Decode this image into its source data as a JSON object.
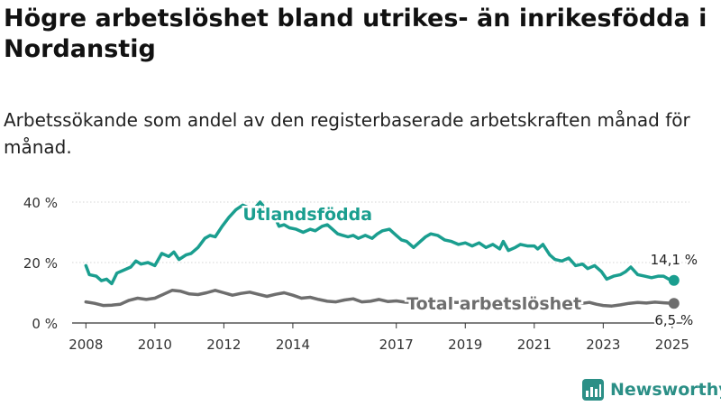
{
  "title": "Högre arbetslöshet bland utrikes- än inrikesfödda i Nordanstig",
  "subtitle": "Arbetssökande som andel av den registerbaserade arbetskraften månad för månad.",
  "brand": {
    "name": "Newsworthy",
    "icon": "bar-chart-logo-icon",
    "color": "#2b8f86"
  },
  "chart_data": {
    "type": "line",
    "ylim": [
      0,
      40
    ],
    "xlim": [
      2007.6,
      2025.5
    ],
    "y_ticks": [
      {
        "value": 0,
        "label": "0 %"
      },
      {
        "value": 20,
        "label": "20 %"
      },
      {
        "value": 40,
        "label": "40 %"
      }
    ],
    "x_ticks": [
      {
        "value": 2008,
        "label": "2008"
      },
      {
        "value": 2010,
        "label": "2010"
      },
      {
        "value": 2012,
        "label": "2012"
      },
      {
        "value": 2014,
        "label": "2014"
      },
      {
        "value": 2017,
        "label": "2017"
      },
      {
        "value": 2019,
        "label": "2019"
      },
      {
        "value": 2021,
        "label": "2021"
      },
      {
        "value": 2023,
        "label": "2023"
      },
      {
        "value": 2025,
        "label": "2025"
      }
    ],
    "grid": true,
    "series": [
      {
        "name": "Utlandsfödda",
        "color": "#1a9e8f",
        "end_label": "14,1 %",
        "points": [
          [
            2008.0,
            19
          ],
          [
            2008.1,
            16
          ],
          [
            2008.3,
            15.5
          ],
          [
            2008.45,
            14
          ],
          [
            2008.6,
            14.5
          ],
          [
            2008.75,
            13
          ],
          [
            2008.9,
            16.5
          ],
          [
            2009.1,
            17.5
          ],
          [
            2009.3,
            18.5
          ],
          [
            2009.45,
            20.5
          ],
          [
            2009.6,
            19.5
          ],
          [
            2009.8,
            20
          ],
          [
            2010.0,
            19
          ],
          [
            2010.2,
            23
          ],
          [
            2010.4,
            22
          ],
          [
            2010.55,
            23.5
          ],
          [
            2010.7,
            21
          ],
          [
            2010.9,
            22.5
          ],
          [
            2011.05,
            23
          ],
          [
            2011.25,
            25
          ],
          [
            2011.45,
            28
          ],
          [
            2011.6,
            29
          ],
          [
            2011.75,
            28.5
          ],
          [
            2011.95,
            32
          ],
          [
            2012.15,
            35
          ],
          [
            2012.35,
            37.5
          ],
          [
            2012.55,
            39
          ],
          [
            2012.75,
            38
          ],
          [
            2012.9,
            38
          ],
          [
            2013.05,
            40
          ],
          [
            2013.2,
            38
          ],
          [
            2013.4,
            37
          ],
          [
            2013.6,
            32
          ],
          [
            2013.75,
            32.5
          ],
          [
            2013.9,
            31.5
          ],
          [
            2014.1,
            31
          ],
          [
            2014.3,
            30
          ],
          [
            2014.5,
            31
          ],
          [
            2014.65,
            30.5
          ],
          [
            2014.85,
            32
          ],
          [
            2015.0,
            32.5
          ],
          [
            2015.15,
            31
          ],
          [
            2015.3,
            29.5
          ],
          [
            2015.45,
            29
          ],
          [
            2015.6,
            28.5
          ],
          [
            2015.75,
            29
          ],
          [
            2015.9,
            28
          ],
          [
            2016.1,
            29
          ],
          [
            2016.3,
            28
          ],
          [
            2016.45,
            29.5
          ],
          [
            2016.6,
            30.5
          ],
          [
            2016.8,
            31
          ],
          [
            2017.0,
            29
          ],
          [
            2017.15,
            27.5
          ],
          [
            2017.3,
            27
          ],
          [
            2017.5,
            25
          ],
          [
            2017.65,
            26.5
          ],
          [
            2017.85,
            28.5
          ],
          [
            2018.0,
            29.5
          ],
          [
            2018.2,
            29
          ],
          [
            2018.4,
            27.5
          ],
          [
            2018.6,
            27
          ],
          [
            2018.8,
            26
          ],
          [
            2019.0,
            26.5
          ],
          [
            2019.2,
            25.5
          ],
          [
            2019.4,
            26.5
          ],
          [
            2019.6,
            25
          ],
          [
            2019.8,
            26
          ],
          [
            2020.0,
            24.5
          ],
          [
            2020.1,
            27
          ],
          [
            2020.25,
            24
          ],
          [
            2020.45,
            25
          ],
          [
            2020.6,
            26
          ],
          [
            2020.8,
            25.5
          ],
          [
            2021.0,
            25.5
          ],
          [
            2021.1,
            24.5
          ],
          [
            2021.25,
            26
          ],
          [
            2021.45,
            22.5
          ],
          [
            2021.6,
            21
          ],
          [
            2021.8,
            20.5
          ],
          [
            2022.0,
            21.5
          ],
          [
            2022.2,
            19
          ],
          [
            2022.4,
            19.5
          ],
          [
            2022.55,
            18
          ],
          [
            2022.75,
            19
          ],
          [
            2022.95,
            17
          ],
          [
            2023.1,
            14.5
          ],
          [
            2023.3,
            15.5
          ],
          [
            2023.5,
            16
          ],
          [
            2023.65,
            17
          ],
          [
            2023.8,
            18.5
          ],
          [
            2024.0,
            16
          ],
          [
            2024.2,
            15.5
          ],
          [
            2024.4,
            15
          ],
          [
            2024.6,
            15.5
          ],
          [
            2024.75,
            15.5
          ],
          [
            2024.9,
            14.5
          ],
          [
            2025.05,
            14.1
          ]
        ]
      },
      {
        "name": "Total arbetslöshet",
        "color": "#6e6e6e",
        "end_label": "6,5 %",
        "points": [
          [
            2008.0,
            7
          ],
          [
            2008.25,
            6.5
          ],
          [
            2008.5,
            5.8
          ],
          [
            2008.75,
            5.9
          ],
          [
            2009.0,
            6.2
          ],
          [
            2009.25,
            7.5
          ],
          [
            2009.5,
            8.2
          ],
          [
            2009.75,
            7.8
          ],
          [
            2010.0,
            8.2
          ],
          [
            2010.25,
            9.5
          ],
          [
            2010.5,
            10.8
          ],
          [
            2010.75,
            10.5
          ],
          [
            2011.0,
            9.6
          ],
          [
            2011.25,
            9.4
          ],
          [
            2011.5,
            10
          ],
          [
            2011.75,
            10.8
          ],
          [
            2012.0,
            10
          ],
          [
            2012.25,
            9.2
          ],
          [
            2012.5,
            9.8
          ],
          [
            2012.75,
            10.2
          ],
          [
            2013.0,
            9.5
          ],
          [
            2013.25,
            8.8
          ],
          [
            2013.5,
            9.5
          ],
          [
            2013.75,
            10
          ],
          [
            2014.0,
            9.2
          ],
          [
            2014.25,
            8.2
          ],
          [
            2014.5,
            8.5
          ],
          [
            2014.75,
            7.8
          ],
          [
            2015.0,
            7.2
          ],
          [
            2015.25,
            7
          ],
          [
            2015.5,
            7.6
          ],
          [
            2015.75,
            8
          ],
          [
            2016.0,
            7
          ],
          [
            2016.25,
            7.2
          ],
          [
            2016.5,
            7.8
          ],
          [
            2016.75,
            7.1
          ],
          [
            2017.0,
            7.3
          ],
          [
            2017.25,
            6.9
          ],
          [
            2017.5,
            6.8
          ],
          [
            2017.75,
            7.1
          ],
          [
            2018.0,
            7.2
          ],
          [
            2018.25,
            6.9
          ],
          [
            2018.5,
            7
          ],
          [
            2018.75,
            6.8
          ],
          [
            2019.0,
            6.9
          ],
          [
            2019.25,
            7.1
          ],
          [
            2019.5,
            7
          ],
          [
            2019.75,
            6.9
          ],
          [
            2020.0,
            7.2
          ],
          [
            2020.25,
            7.6
          ],
          [
            2020.5,
            7.4
          ],
          [
            2020.75,
            7.1
          ],
          [
            2021.0,
            7.4
          ],
          [
            2021.25,
            7.1
          ],
          [
            2021.5,
            6.8
          ],
          [
            2021.75,
            6.9
          ],
          [
            2022.0,
            7.5
          ],
          [
            2022.2,
            7
          ],
          [
            2022.4,
            6.5
          ],
          [
            2022.6,
            6.8
          ],
          [
            2022.8,
            6.2
          ],
          [
            2023.0,
            5.8
          ],
          [
            2023.25,
            5.6
          ],
          [
            2023.5,
            6
          ],
          [
            2023.75,
            6.5
          ],
          [
            2024.0,
            6.8
          ],
          [
            2024.25,
            6.6
          ],
          [
            2024.5,
            6.9
          ],
          [
            2024.75,
            6.7
          ],
          [
            2025.05,
            6.5
          ]
        ]
      }
    ]
  }
}
